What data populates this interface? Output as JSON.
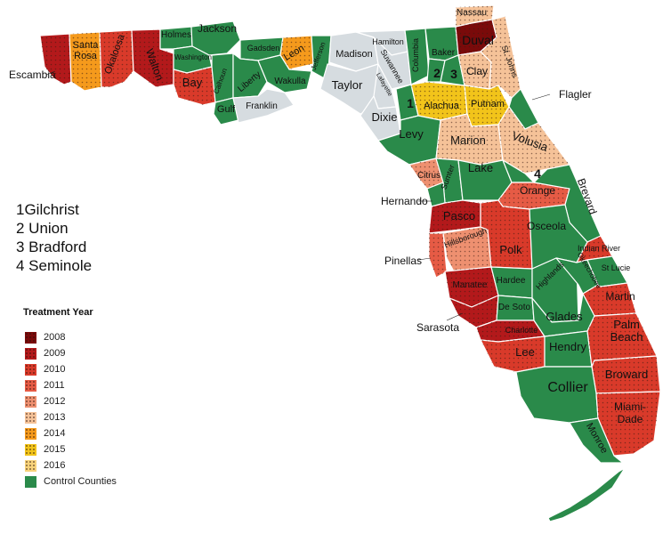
{
  "colors": {
    "y2008": "#7a0a0a",
    "y2009": "#b3191b",
    "y2010": "#d93a2a",
    "y2011": "#e65b45",
    "y2012": "#ee9070",
    "y2013": "#f5c298",
    "y2014": "#f59a1c",
    "y2015": "#f2c41a",
    "y2016": "#f7d27a",
    "control": "#2a8a4a",
    "none": "#d6dce0"
  },
  "number_key": [
    "1Gilchrist",
    "2 Union",
    "3 Bradford",
    "4 Seminole"
  ],
  "legend": {
    "title": "Treatment Year",
    "items": [
      {
        "label": "2008",
        "color": "#7a0a0a"
      },
      {
        "label": "2009",
        "color": "#b3191b"
      },
      {
        "label": "2010",
        "color": "#d93a2a"
      },
      {
        "label": "2011",
        "color": "#e65b45"
      },
      {
        "label": "2012",
        "color": "#ee9070"
      },
      {
        "label": "2013",
        "color": "#f5c298"
      },
      {
        "label": "2014",
        "color": "#f59a1c"
      },
      {
        "label": "2015",
        "color": "#f2c41a"
      },
      {
        "label": "2016",
        "color": "#f7d27a"
      },
      {
        "label": "Control Counties",
        "color": "#2a8a4a"
      }
    ]
  },
  "counties": [
    {
      "name": "Escambia",
      "year": "2009"
    },
    {
      "name": "Santa Rosa",
      "year": "2014"
    },
    {
      "name": "Okaloosa",
      "year": "2010"
    },
    {
      "name": "Walton",
      "year": "2009"
    },
    {
      "name": "Holmes",
      "year": "control"
    },
    {
      "name": "Jackson",
      "year": "control"
    },
    {
      "name": "Washington",
      "year": "control"
    },
    {
      "name": "Bay",
      "year": "2010"
    },
    {
      "name": "Calhoun",
      "year": "control"
    },
    {
      "name": "Gadsden",
      "year": "control"
    },
    {
      "name": "Leon",
      "year": "2014"
    },
    {
      "name": "Liberty",
      "year": "control"
    },
    {
      "name": "Wakulla",
      "year": "control"
    },
    {
      "name": "Jefferson",
      "year": "control"
    },
    {
      "name": "Gulf",
      "year": "control"
    },
    {
      "name": "Franklin",
      "year": "none"
    },
    {
      "name": "Madison",
      "year": "none"
    },
    {
      "name": "Hamilton",
      "year": "none"
    },
    {
      "name": "Suwannee",
      "year": "none"
    },
    {
      "name": "Taylor",
      "year": "none"
    },
    {
      "name": "Lafayette",
      "year": "none"
    },
    {
      "name": "Dixie",
      "year": "none"
    },
    {
      "name": "Columbia",
      "year": "control"
    },
    {
      "name": "Baker",
      "year": "control"
    },
    {
      "name": "Nassau",
      "year": "2013"
    },
    {
      "name": "Duval",
      "year": "2008"
    },
    {
      "name": "Union",
      "year": "control"
    },
    {
      "name": "Bradford",
      "year": "control"
    },
    {
      "name": "Clay",
      "year": "2013"
    },
    {
      "name": "St. Johns",
      "year": "2013"
    },
    {
      "name": "Gilchrist",
      "year": "control"
    },
    {
      "name": "Alachua",
      "year": "2015"
    },
    {
      "name": "Putnam",
      "year": "2015"
    },
    {
      "name": "Flagler",
      "year": "control"
    },
    {
      "name": "Levy",
      "year": "control"
    },
    {
      "name": "Marion",
      "year": "2013"
    },
    {
      "name": "Volusia",
      "year": "2013"
    },
    {
      "name": "Citrus",
      "year": "2012"
    },
    {
      "name": "Sumter",
      "year": "control"
    },
    {
      "name": "Lake",
      "year": "control"
    },
    {
      "name": "Seminole",
      "year": "control"
    },
    {
      "name": "Orange",
      "year": "2011"
    },
    {
      "name": "Brevard",
      "year": "control"
    },
    {
      "name": "Hernando",
      "year": "control"
    },
    {
      "name": "Pasco",
      "year": "2009"
    },
    {
      "name": "Pinellas",
      "year": "2011"
    },
    {
      "name": "Hillsborough",
      "year": "2012"
    },
    {
      "name": "Polk",
      "year": "2010"
    },
    {
      "name": "Osceola",
      "year": "control"
    },
    {
      "name": "Indian River",
      "year": "2010"
    },
    {
      "name": "Manatee",
      "year": "2009"
    },
    {
      "name": "Hardee",
      "year": "control"
    },
    {
      "name": "Highlands",
      "year": "control"
    },
    {
      "name": "Okeechobee",
      "year": "control"
    },
    {
      "name": "St Lucie",
      "year": "control"
    },
    {
      "name": "Sarasota",
      "year": "2009"
    },
    {
      "name": "De Soto",
      "year": "control"
    },
    {
      "name": "Martin",
      "year": "2010"
    },
    {
      "name": "Charlotte",
      "year": "2009"
    },
    {
      "name": "Glades",
      "year": "control"
    },
    {
      "name": "Lee",
      "year": "2010"
    },
    {
      "name": "Hendry",
      "year": "control"
    },
    {
      "name": "Palm Beach",
      "year": "2010"
    },
    {
      "name": "Broward",
      "year": "2010"
    },
    {
      "name": "Collier",
      "year": "control"
    },
    {
      "name": "Miami-Dade",
      "year": "2010"
    },
    {
      "name": "Monroe",
      "year": "control"
    }
  ],
  "map_labels": {
    "c1": "1",
    "c2": "2",
    "c3": "3",
    "c4": "4"
  }
}
